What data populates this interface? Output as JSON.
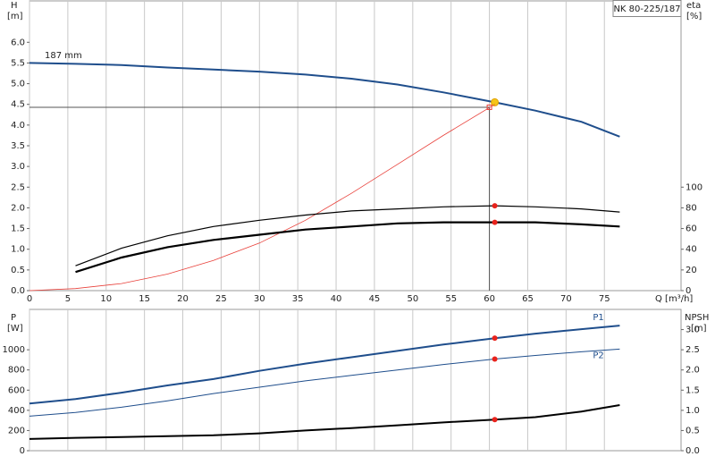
{
  "chart_data": [
    {
      "type": "line",
      "product": "NK 80-225/187",
      "annotation": "187 mm",
      "y_label": "H",
      "y_unit": "[m]",
      "y2_label": "eta",
      "y2_unit": "[%]",
      "x_label": "Q [m³/h]",
      "x": [
        0,
        6,
        12,
        18,
        24,
        30,
        36,
        42,
        48,
        54,
        60.7,
        66,
        72,
        77
      ],
      "xlim": [
        0,
        85
      ],
      "xticks": [
        0,
        5,
        10,
        15,
        20,
        25,
        30,
        35,
        40,
        45,
        50,
        55,
        60,
        65,
        70,
        75
      ],
      "ylim": [
        0,
        7
      ],
      "yticks": [
        {
          "value": 0,
          "label": "0.0"
        },
        0.5,
        {
          "value": 1,
          "label": "1.0"
        },
        1.5,
        {
          "value": 2,
          "label": "2.0"
        },
        2.5,
        {
          "value": 3,
          "label": "3.0"
        },
        3.5,
        {
          "value": 4,
          "label": "4.0"
        },
        4.5,
        {
          "value": 5,
          "label": "5.0"
        },
        5.5,
        {
          "value": 6,
          "label": "6.0"
        }
      ],
      "y2lim": [
        0,
        280
      ],
      "y2ticks": [
        0,
        20,
        40,
        60,
        80,
        100
      ],
      "grid": "x",
      "duty_point": {
        "x": 60,
        "y": 4.43
      },
      "marker_x": 60.7,
      "series": [
        {
          "name": "187 mm",
          "color": "#1f4e8c",
          "width": 2,
          "marker_color": "#f5c518",
          "values": [
            5.5,
            5.48,
            5.45,
            5.39,
            5.34,
            5.29,
            5.22,
            5.12,
            4.98,
            4.79,
            4.55,
            4.35,
            4.08,
            3.72
          ]
        },
        {
          "color": "#e8403a",
          "width": 0.8,
          "values": [
            0,
            0.05,
            0.17,
            0.4,
            0.73,
            1.15,
            1.7,
            2.35,
            3.05,
            3.75,
            4.5,
            null,
            null,
            null
          ]
        },
        {
          "color": "#000000",
          "width": 1.2,
          "axis": "y2",
          "marker_color": "#e8231c",
          "values": [
            null,
            24,
            41,
            53,
            62,
            68,
            73,
            77,
            79,
            81,
            82,
            81,
            79,
            76
          ]
        },
        {
          "color": "#000000",
          "width": 2.2,
          "axis": "y2",
          "marker_color": "#e8231c",
          "values": [
            null,
            18,
            32,
            42,
            49,
            54,
            59,
            62,
            65,
            66,
            66,
            66,
            64,
            62
          ]
        }
      ]
    },
    {
      "type": "line",
      "y_label": "P",
      "y_unit": "[W]",
      "y2_label": "NPSH",
      "y2_unit": "[m]",
      "x": [
        0,
        6,
        12,
        18,
        24,
        30,
        36,
        42,
        48,
        54,
        60.7,
        66,
        72,
        77
      ],
      "xlim": [
        0,
        85
      ],
      "xticks": [
        0,
        5,
        10,
        15,
        20,
        25,
        30,
        35,
        40,
        45,
        50,
        55,
        60,
        65,
        70,
        75
      ],
      "ylim": [
        0,
        1400
      ],
      "yticks": [
        0,
        200,
        400,
        600,
        800,
        1000
      ],
      "y2lim": [
        0,
        3.5
      ],
      "y2ticks": [
        {
          "value": 0,
          "label": "0.0"
        },
        0.5,
        {
          "value": 1,
          "label": "1.0"
        },
        1.5,
        {
          "value": 2,
          "label": "2.0"
        },
        2.5,
        {
          "value": 3,
          "label": "3.0"
        }
      ],
      "grid": "x",
      "marker_x": 60.7,
      "series": [
        {
          "name": "P1",
          "color": "#1f4e8c",
          "width": 2,
          "marker_color": "#e8231c",
          "values": [
            467,
            512,
            575,
            647,
            710,
            791,
            863,
            926,
            989,
            1052,
            1115,
            1160,
            1204,
            1240
          ]
        },
        {
          "name": "P2",
          "color": "#1f4e8c",
          "width": 1,
          "marker_color": "#e8231c",
          "values": [
            342,
            378,
            431,
            494,
            566,
            629,
            692,
            746,
            800,
            854,
            908,
            944,
            980,
            1007
          ]
        },
        {
          "color": "#000000",
          "width": 2,
          "axis": "y2",
          "marker_color": "#e8231c",
          "values": [
            0.29,
            0.32,
            0.34,
            0.36,
            0.38,
            0.43,
            0.5,
            0.56,
            0.63,
            0.7,
            0.77,
            0.83,
            0.97,
            1.13
          ]
        }
      ]
    }
  ]
}
